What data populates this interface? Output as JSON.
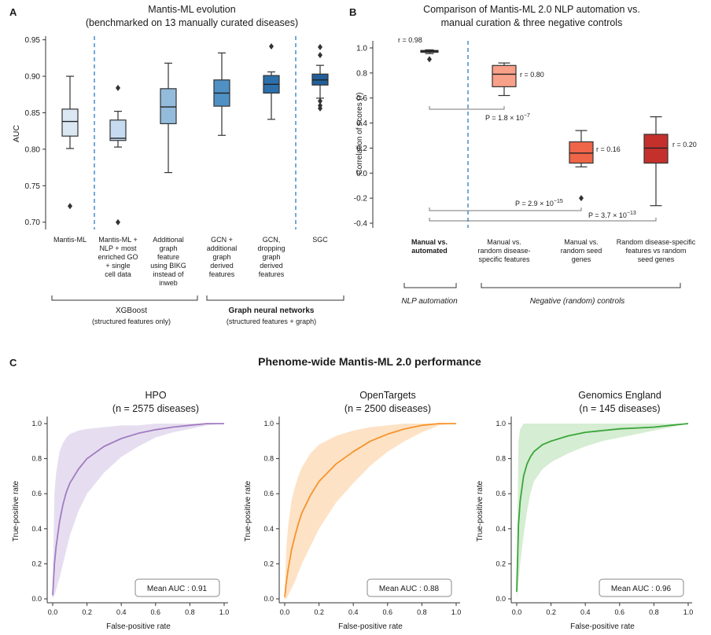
{
  "panels": {
    "a": {
      "letter": "A",
      "title_line1": "Mantis-ML evolution",
      "title_line2": "(benchmarked on 13 manually curated diseases)",
      "ylabel": "AUC",
      "group1_label": "XGBoost",
      "group1_sub": "(structured features only)",
      "group2_label": "Graph neural networks",
      "group2_sub": "(structured features + graph)"
    },
    "b": {
      "letter": "B",
      "title_line1": "Comparison of Mantis-ML 2.0 NLP automation vs.",
      "title_line2": "manual curation & three negative controls",
      "ylabel": "Correlation of scores (r)",
      "group1_label": "NLP automation",
      "group2_label": "Negative (random) controls",
      "p1": "P = 1.8 × 10",
      "p1_exp": "−7",
      "p2": "P = 2.9 × 10",
      "p2_exp": "−15",
      "p3": "P = 3.7 × 10",
      "p3_exp": "−13"
    },
    "c": {
      "letter": "C",
      "title": "Phenome-wide Mantis-ML 2.0 performance"
    }
  },
  "chart_data": [
    {
      "type": "box",
      "title": "Mantis-ML evolution (benchmarked on 13 manually curated diseases)",
      "ylabel": "AUC",
      "ylim": [
        0.69,
        0.955
      ],
      "yticks": [
        0.7,
        0.75,
        0.8,
        0.85,
        0.9,
        0.95
      ],
      "categories": [
        {
          "label": [
            "Mantis-ML"
          ],
          "color": "#dbe8f4",
          "whislo": 0.801,
          "q1": 0.818,
          "med": 0.838,
          "q3": 0.855,
          "whishi": 0.9,
          "fliers": [
            0.722
          ]
        },
        {
          "label": [
            "Mantis-ML +",
            "NLP + most",
            "enriched GO",
            "+ single",
            "cell data"
          ],
          "color": "#c6dbef",
          "whislo": 0.803,
          "q1": 0.812,
          "med": 0.815,
          "q3": 0.84,
          "whishi": 0.852,
          "fliers": [
            0.884,
            0.7
          ]
        },
        {
          "label": [
            "Additional",
            "graph",
            "feature",
            "using BIKG",
            "instead of",
            "inweb"
          ],
          "color": "#93bcdc",
          "whislo": 0.768,
          "q1": 0.835,
          "med": 0.858,
          "q3": 0.883,
          "whishi": 0.918,
          "fliers": []
        },
        {
          "label": [
            "GCN +",
            "additional",
            "graph",
            "derived",
            "features"
          ],
          "color": "#4f91c4",
          "whislo": 0.819,
          "q1": 0.859,
          "med": 0.877,
          "q3": 0.895,
          "whishi": 0.932,
          "fliers": []
        },
        {
          "label": [
            "GCN,",
            "dropping",
            "graph",
            "derived",
            "features"
          ],
          "color": "#2c6fab",
          "whislo": 0.841,
          "q1": 0.877,
          "med": 0.889,
          "q3": 0.901,
          "whishi": 0.906,
          "fliers": [
            0.941
          ]
        },
        {
          "label": [
            "SGC"
          ],
          "color": "#225f99",
          "whislo": 0.87,
          "q1": 0.888,
          "med": 0.895,
          "q3": 0.903,
          "whishi": 0.915,
          "fliers": [
            0.94,
            0.929,
            0.866,
            0.86,
            0.856
          ]
        }
      ]
    },
    {
      "type": "box",
      "title": "Comparison of Mantis-ML 2.0 NLP automation vs. manual curation & three negative controls",
      "ylabel": "Correlation of scores (r)",
      "ylim": [
        -0.44,
        1.06
      ],
      "yticks": [
        -0.4,
        -0.2,
        0.0,
        0.2,
        0.4,
        0.6,
        0.8,
        1.0
      ],
      "categories": [
        {
          "label": [
            "Manual vs.",
            "automated"
          ],
          "bold": true,
          "color": "#3a3a3a",
          "whislo": 0.955,
          "q1": 0.965,
          "med": 0.975,
          "q3": 0.98,
          "whishi": 0.985,
          "fliers": [
            0.91
          ],
          "r_label": "r = 0.98"
        },
        {
          "label": [
            "Manual vs.",
            "random disease-",
            "specific features"
          ],
          "color": "#f9a088",
          "whislo": 0.62,
          "q1": 0.69,
          "med": 0.79,
          "q3": 0.86,
          "whishi": 0.88,
          "fliers": [],
          "r_label": "r = 0.80"
        },
        {
          "label": [
            "Manual vs.",
            "random seed",
            "genes"
          ],
          "color": "#ef6548",
          "whislo": 0.05,
          "q1": 0.08,
          "med": 0.16,
          "q3": 0.25,
          "whishi": 0.34,
          "fliers": [
            -0.2
          ],
          "r_label": "r = 0.16"
        },
        {
          "label": [
            "Random disease-specific",
            "features vs random",
            "seed genes"
          ],
          "color": "#c4312d",
          "whislo": -0.26,
          "q1": 0.08,
          "med": 0.2,
          "q3": 0.31,
          "whishi": 0.45,
          "fliers": [],
          "r_label": "r = 0.20"
        }
      ]
    },
    {
      "type": "line",
      "title": "HPO",
      "subtitle": "(n = 2575 diseases)",
      "xlabel": "False-positive rate",
      "ylabel": "True-positive rate",
      "xlim": [
        0,
        1
      ],
      "ylim": [
        0,
        1
      ],
      "color": "#a17cc2",
      "band_color": "#e5dcef",
      "mean_auc": "Mean AUC : 0.91",
      "x": [
        0,
        0.01,
        0.02,
        0.04,
        0.06,
        0.08,
        0.1,
        0.15,
        0.2,
        0.3,
        0.4,
        0.5,
        0.6,
        0.7,
        0.8,
        0.9,
        1.0
      ],
      "y": [
        0.02,
        0.2,
        0.3,
        0.44,
        0.54,
        0.61,
        0.66,
        0.74,
        0.8,
        0.87,
        0.915,
        0.945,
        0.965,
        0.98,
        0.99,
        1.0,
        1.0
      ],
      "upper": [
        0.05,
        0.6,
        0.72,
        0.84,
        0.89,
        0.92,
        0.94,
        0.96,
        0.97,
        0.98,
        0.99,
        0.99,
        1.0,
        1.0,
        1.0,
        1.0,
        1.0
      ],
      "lower": [
        0.0,
        0.02,
        0.05,
        0.12,
        0.2,
        0.28,
        0.36,
        0.5,
        0.6,
        0.72,
        0.81,
        0.87,
        0.92,
        0.95,
        0.97,
        0.99,
        1.0
      ]
    },
    {
      "type": "line",
      "title": "OpenTargets",
      "subtitle": "(n = 2500 diseases)",
      "xlabel": "False-positive rate",
      "ylabel": "True-positive rate",
      "xlim": [
        0,
        1
      ],
      "ylim": [
        0,
        1
      ],
      "color": "#f7942c",
      "band_color": "#fde0c2",
      "mean_auc": "Mean AUC : 0.88",
      "x": [
        0,
        0.01,
        0.02,
        0.04,
        0.06,
        0.08,
        0.1,
        0.15,
        0.2,
        0.3,
        0.4,
        0.5,
        0.6,
        0.7,
        0.8,
        0.9,
        1.0
      ],
      "y": [
        0.01,
        0.1,
        0.17,
        0.28,
        0.36,
        0.43,
        0.49,
        0.59,
        0.67,
        0.77,
        0.84,
        0.9,
        0.94,
        0.97,
        0.99,
        1.0,
        1.0
      ],
      "upper": [
        0.05,
        0.3,
        0.42,
        0.56,
        0.64,
        0.7,
        0.75,
        0.83,
        0.88,
        0.93,
        0.96,
        0.98,
        0.99,
        1.0,
        1.0,
        1.0,
        1.0
      ],
      "lower": [
        0.0,
        0.0,
        0.02,
        0.06,
        0.1,
        0.15,
        0.2,
        0.3,
        0.4,
        0.55,
        0.66,
        0.76,
        0.84,
        0.9,
        0.95,
        0.99,
        1.0
      ]
    },
    {
      "type": "line",
      "title": "Genomics England",
      "subtitle": "(n = 145 diseases)",
      "xlabel": "False-positive rate",
      "ylabel": "True-positive rate",
      "xlim": [
        0,
        1
      ],
      "ylim": [
        0,
        1
      ],
      "color": "#3aa53a",
      "band_color": "#d3ecd0",
      "mean_auc": "Mean AUC : 0.96",
      "x": [
        0,
        0.01,
        0.02,
        0.04,
        0.06,
        0.08,
        0.1,
        0.15,
        0.2,
        0.3,
        0.4,
        0.5,
        0.6,
        0.7,
        0.8,
        0.9,
        1.0
      ],
      "y": [
        0.04,
        0.42,
        0.56,
        0.7,
        0.77,
        0.81,
        0.84,
        0.88,
        0.9,
        0.93,
        0.95,
        0.96,
        0.97,
        0.975,
        0.98,
        0.99,
        1.0
      ],
      "upper": [
        0.1,
        0.9,
        0.97,
        1.0,
        1.0,
        1.0,
        1.0,
        1.0,
        1.0,
        1.0,
        1.0,
        1.0,
        1.0,
        1.0,
        1.0,
        1.0,
        1.0
      ],
      "lower": [
        0.0,
        0.1,
        0.2,
        0.36,
        0.5,
        0.6,
        0.67,
        0.74,
        0.78,
        0.83,
        0.87,
        0.9,
        0.92,
        0.94,
        0.96,
        0.98,
        1.0
      ]
    }
  ]
}
